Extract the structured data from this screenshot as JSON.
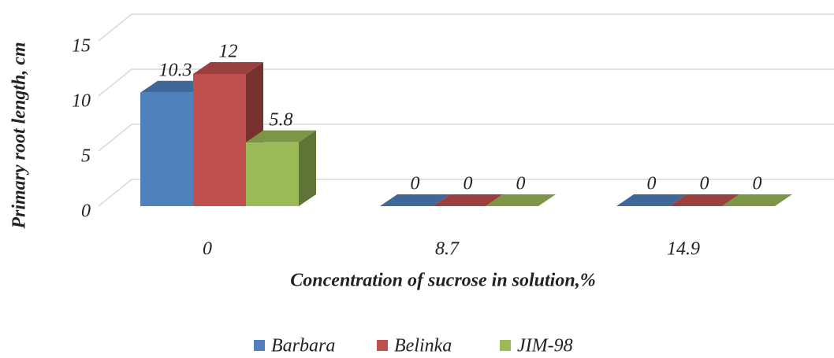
{
  "chart_data": {
    "type": "bar3d",
    "x_label": "Concentration of sucrose in solution,%",
    "y_label": "Primary root length, cm",
    "categories": [
      "0",
      "8.7",
      "14.9"
    ],
    "series": [
      {
        "name": "Barbara",
        "color": "#4f81bd",
        "values": [
          10.3,
          0,
          0
        ]
      },
      {
        "name": "Belinka",
        "color": "#c0504d",
        "values": [
          12,
          0,
          0
        ]
      },
      {
        "name": "JIM-98",
        "color": "#9bbb59",
        "values": [
          5.8,
          0,
          0
        ]
      }
    ],
    "ylim": [
      0,
      15
    ],
    "yticks": [
      0,
      5,
      10,
      15
    ],
    "grid": true,
    "legend": "bottom"
  }
}
